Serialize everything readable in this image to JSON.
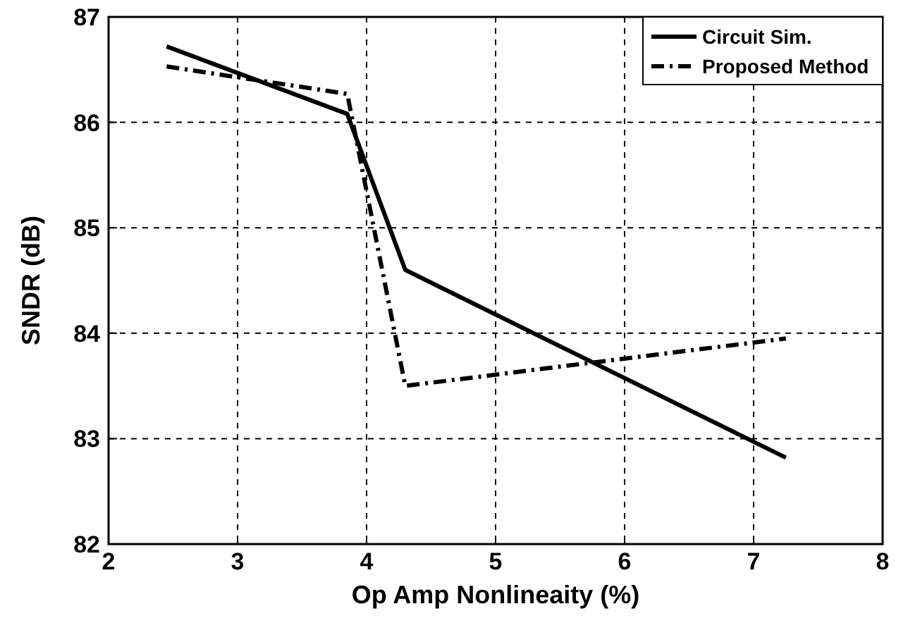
{
  "chart_data": {
    "type": "line",
    "xlabel": "Op Amp Nonlineaity (%)",
    "ylabel": "SNDR (dB)",
    "xlim": [
      2,
      8
    ],
    "xticks": [
      2,
      3,
      4,
      5,
      6,
      7,
      8
    ],
    "ylim": [
      82,
      87
    ],
    "yticks": [
      82,
      83,
      84,
      85,
      86,
      87
    ],
    "grid": true,
    "legend": "top right",
    "marker": "none",
    "series": [
      {
        "name": "Circuit Sim.",
        "color": "#000000",
        "line_style": "solid",
        "x": [
          2.45,
          3.85,
          4.3,
          7.25
        ],
        "values": [
          86.72,
          86.08,
          84.6,
          82.82
        ]
      },
      {
        "name": "Proposed Method",
        "color": "#000000",
        "line_style": "dashdot",
        "x": [
          2.45,
          3.85,
          4.3,
          7.25
        ],
        "values": [
          86.53,
          86.27,
          83.5,
          83.95
        ]
      }
    ]
  }
}
